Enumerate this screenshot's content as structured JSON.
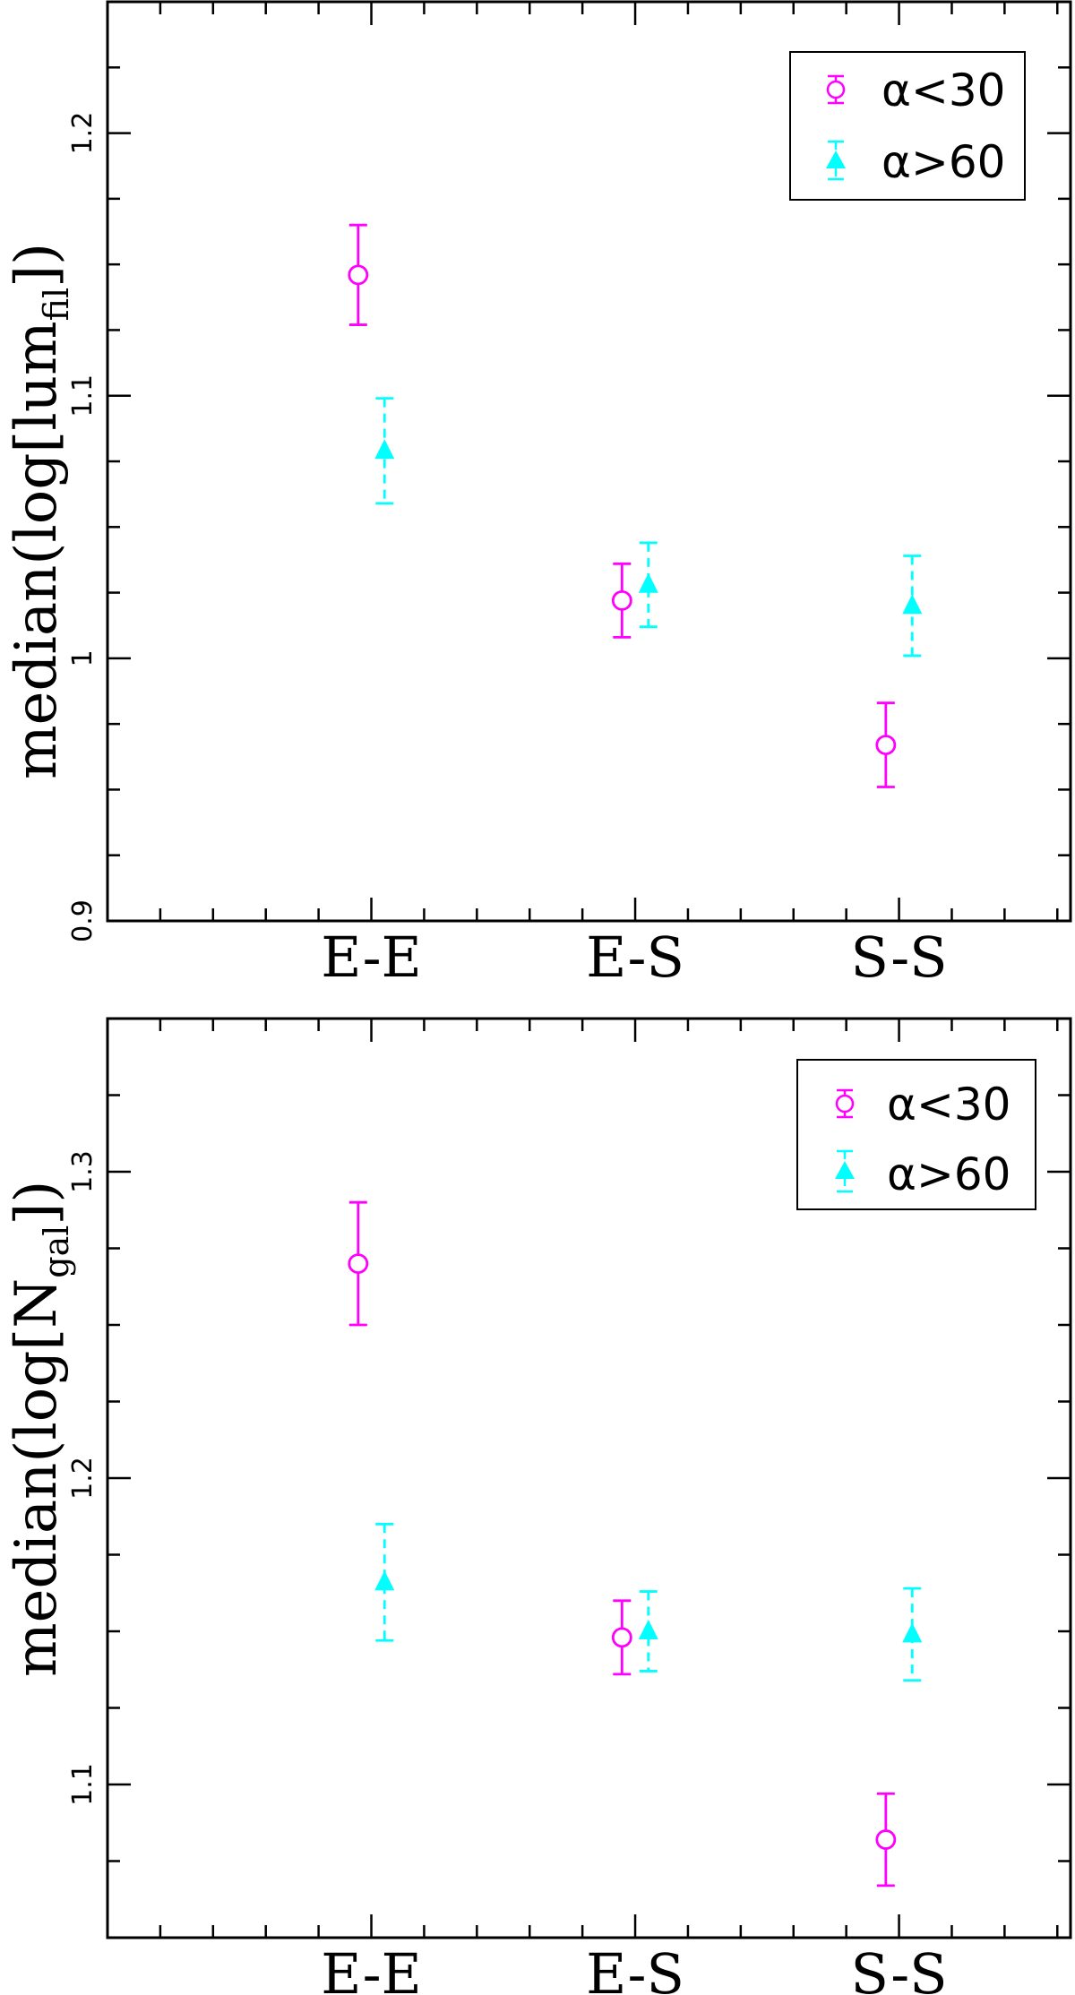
{
  "chart_data": [
    {
      "type": "scatter",
      "title": "",
      "xlabel": "",
      "ylabel": "median(log[lum",
      "ylabel_sub": "fil",
      "ylabel_end": "])",
      "categories": [
        "E-E",
        "E-S",
        "S-S"
      ],
      "ylim": [
        0.9,
        1.25
      ],
      "yticks": [
        "0.9",
        "1",
        "1.1",
        "1.2"
      ],
      "ytick_values": [
        0.9,
        1.0,
        1.1,
        1.2
      ],
      "grid": false,
      "legend_position": "top-right",
      "series": [
        {
          "name": "α<30",
          "color": "#ff00ff",
          "marker": "open-circle",
          "errorbar": "solid",
          "x": [
            0.95,
            1.95,
            2.95
          ],
          "y": [
            1.146,
            1.022,
            0.967
          ],
          "yerr": [
            0.019,
            0.014,
            0.016
          ]
        },
        {
          "name": "α>60",
          "color": "#00ffff",
          "marker": "filled-triangle",
          "errorbar": "dashed",
          "x": [
            1.05,
            2.05,
            3.05
          ],
          "y": [
            1.079,
            1.028,
            1.02
          ],
          "yerr": [
            0.02,
            0.016,
            0.019
          ]
        }
      ]
    },
    {
      "type": "scatter",
      "title": "",
      "xlabel": "",
      "ylabel": "median(log[N",
      "ylabel_sub": "gal",
      "ylabel_end": "])",
      "categories": [
        "E-E",
        "E-S",
        "S-S"
      ],
      "ylim": [
        1.05,
        1.35
      ],
      "yticks": [
        "1.1",
        "1.2",
        "1.3"
      ],
      "ytick_values": [
        1.1,
        1.2,
        1.3
      ],
      "grid": false,
      "legend_position": "top-right",
      "series": [
        {
          "name": "α<30",
          "color": "#ff00ff",
          "marker": "open-circle",
          "errorbar": "solid",
          "x": [
            0.95,
            1.95,
            2.95
          ],
          "y": [
            1.27,
            1.148,
            1.082
          ],
          "yerr": [
            0.02,
            0.012,
            0.015
          ]
        },
        {
          "name": "α>60",
          "color": "#00ffff",
          "marker": "filled-triangle",
          "errorbar": "dashed",
          "x": [
            1.05,
            2.05,
            3.05
          ],
          "y": [
            1.166,
            1.15,
            1.149
          ],
          "yerr": [
            0.019,
            0.013,
            0.015
          ]
        }
      ]
    }
  ]
}
